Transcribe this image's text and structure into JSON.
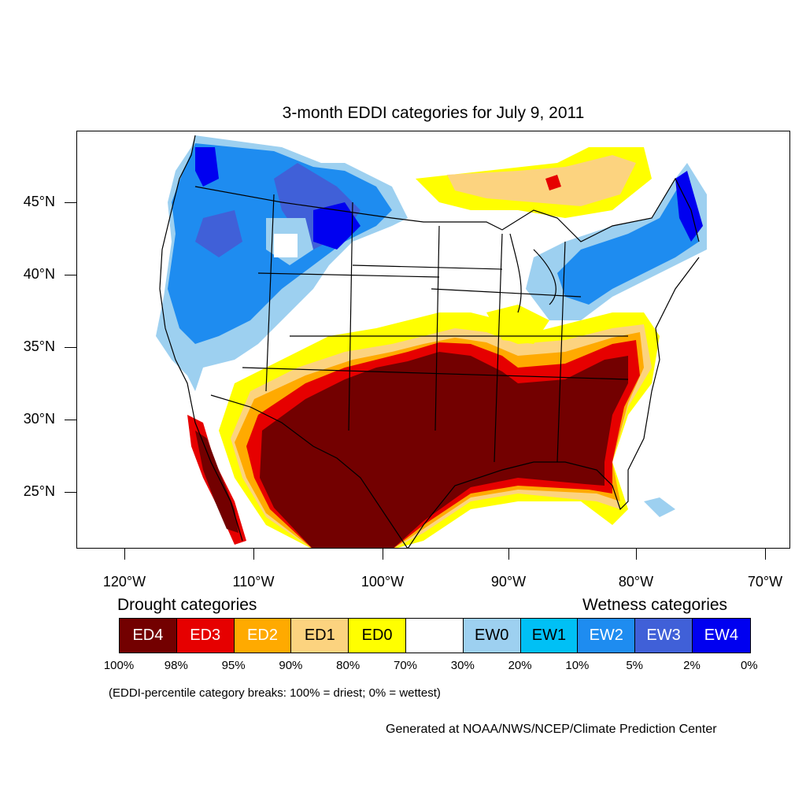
{
  "title": "3-month EDDI categories for July 9, 2011",
  "map": {
    "lat_labels": [
      "45°N",
      "40°N",
      "35°N",
      "30°N",
      "25°N"
    ],
    "lon_labels": [
      "120°W",
      "110°W",
      "100°W",
      "90°W",
      "80°W",
      "70°W"
    ]
  },
  "legend": {
    "drought_heading": "Drought categories",
    "wetness_heading": "Wetness categories",
    "boxes": [
      {
        "label": "ED4",
        "color": "#730000",
        "text_color": "#ffffff"
      },
      {
        "label": "ED3",
        "color": "#e60000",
        "text_color": "#ffffff"
      },
      {
        "label": "ED2",
        "color": "#ffaa00",
        "text_color": "#ffffff"
      },
      {
        "label": "ED1",
        "color": "#fcd37f",
        "text_color": "#000000"
      },
      {
        "label": "ED0",
        "color": "#ffff00",
        "text_color": "#000000"
      },
      {
        "label": "",
        "color": "#ffffff",
        "text_color": "#000000"
      },
      {
        "label": "EW0",
        "color": "#9dd0f0",
        "text_color": "#000000"
      },
      {
        "label": "EW1",
        "color": "#00c0f5",
        "text_color": "#000000"
      },
      {
        "label": "EW2",
        "color": "#1e8cf0",
        "text_color": "#ffffff"
      },
      {
        "label": "EW3",
        "color": "#4060d8",
        "text_color": "#ffffff"
      },
      {
        "label": "EW4",
        "color": "#0000f0",
        "text_color": "#ffffff"
      }
    ],
    "percentiles": [
      "100%",
      "98%",
      "95%",
      "90%",
      "80%",
      "70%",
      "30%",
      "20%",
      "10%",
      "5%",
      "2%",
      "0%"
    ],
    "note": "(EDDI-percentile category breaks: 100% = driest; 0% = wettest)"
  },
  "credit": "Generated at NOAA/NWS/NCEP/Climate Prediction Center"
}
